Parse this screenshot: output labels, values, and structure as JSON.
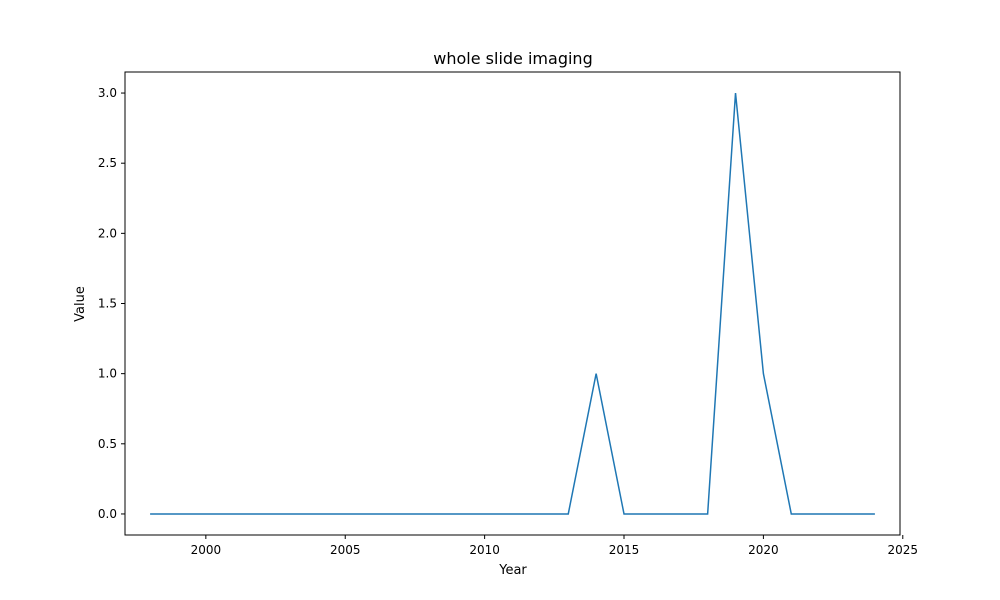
{
  "chart_data": {
    "type": "line",
    "title": "whole slide imaging",
    "xlabel": "Year",
    "ylabel": "Value",
    "xlim": [
      1997.1,
      2024.9
    ],
    "ylim": [
      -0.15,
      3.15
    ],
    "xticks": [
      2000,
      2005,
      2010,
      2015,
      2020,
      2025
    ],
    "yticks": [
      0.0,
      0.5,
      1.0,
      1.5,
      2.0,
      2.5,
      3.0
    ],
    "xtick_labels": [
      "2000",
      "2005",
      "2010",
      "2015",
      "2020",
      "2025"
    ],
    "ytick_labels": [
      "0.0",
      "0.5",
      "1.0",
      "1.5",
      "2.0",
      "2.5",
      "3.0"
    ],
    "grid": false,
    "series": [
      {
        "color": "#1f77b4",
        "x": [
          1998,
          1999,
          2000,
          2001,
          2002,
          2003,
          2004,
          2005,
          2006,
          2007,
          2008,
          2009,
          2010,
          2011,
          2012,
          2013,
          2014,
          2015,
          2016,
          2017,
          2018,
          2019,
          2020,
          2021,
          2022,
          2023,
          2024
        ],
        "y": [
          0,
          0,
          0,
          0,
          0,
          0,
          0,
          0,
          0,
          0,
          0,
          0,
          0,
          0,
          0,
          0,
          1,
          0,
          0,
          0,
          0,
          3,
          1,
          0,
          0,
          0,
          0
        ]
      }
    ]
  }
}
